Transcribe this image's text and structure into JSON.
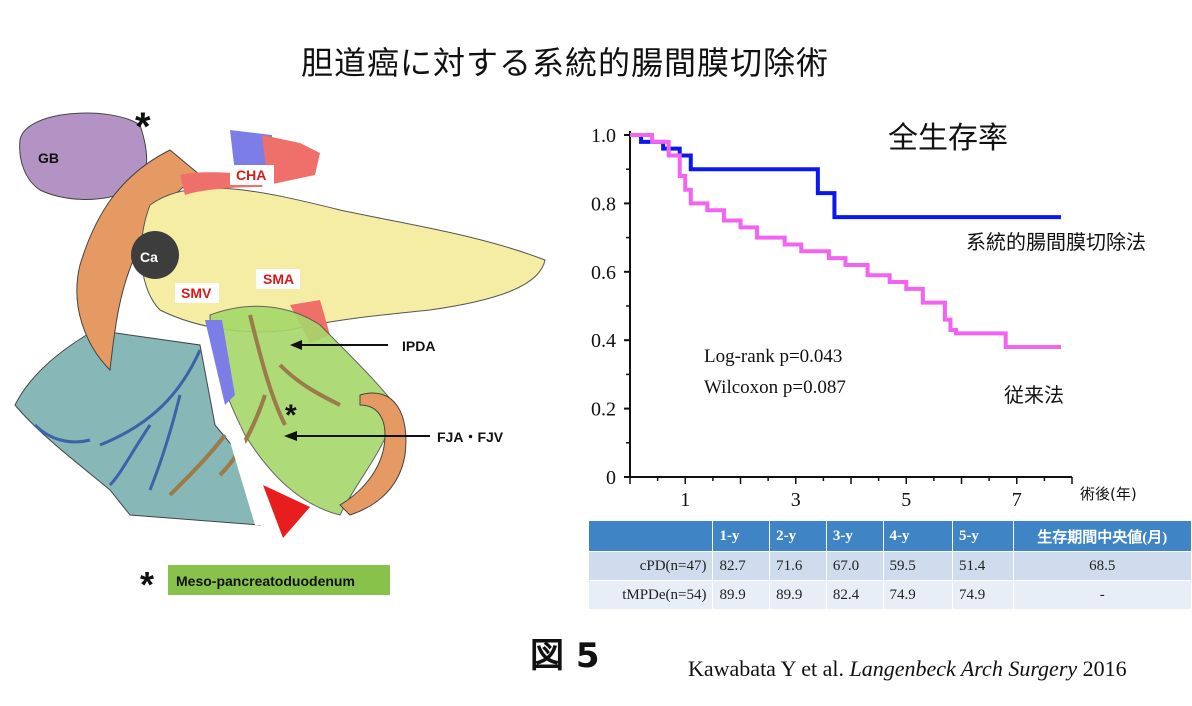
{
  "page_title": "胆道癌に対する系統的腸間膜切除術",
  "anatomy": {
    "labels": {
      "gb": "GB",
      "cha": "CHA",
      "ca": "Ca",
      "smv": "SMV",
      "sma": "SMA",
      "ipda": "IPDA",
      "fja": "FJA・FJV",
      "star": "*"
    },
    "legend_star": "*",
    "legend_text": "Meso-pancreatoduodenum"
  },
  "chart_data": {
    "type": "line",
    "title": "全生存率",
    "xlabel": "術後(年)",
    "ylabel": "",
    "xlim": [
      0,
      8
    ],
    "ylim": [
      0,
      1.0
    ],
    "x_ticks": [
      1,
      3,
      5,
      7
    ],
    "y_ticks": [
      0,
      0.2,
      0.4,
      0.6,
      0.8,
      1.0
    ],
    "y_tick_labels": [
      "0",
      "0.2",
      "0.4",
      "0.6",
      "0.8",
      "1.0"
    ],
    "series": [
      {
        "name": "系統的腸間膜切除法",
        "color": "#0a18f0",
        "points": [
          [
            0,
            1.0
          ],
          [
            0.2,
            1.0
          ],
          [
            0.2,
            0.98
          ],
          [
            0.6,
            0.98
          ],
          [
            0.6,
            0.96
          ],
          [
            0.9,
            0.96
          ],
          [
            0.9,
            0.94
          ],
          [
            1.1,
            0.94
          ],
          [
            1.1,
            0.9
          ],
          [
            3.4,
            0.9
          ],
          [
            3.4,
            0.83
          ],
          [
            3.7,
            0.83
          ],
          [
            3.7,
            0.76
          ],
          [
            7.8,
            0.76
          ]
        ]
      },
      {
        "name": "従来法",
        "color": "#f263f2",
        "points": [
          [
            0,
            1.0
          ],
          [
            0.4,
            1.0
          ],
          [
            0.4,
            0.98
          ],
          [
            0.7,
            0.98
          ],
          [
            0.7,
            0.94
          ],
          [
            0.9,
            0.94
          ],
          [
            0.9,
            0.88
          ],
          [
            1.0,
            0.88
          ],
          [
            1.0,
            0.84
          ],
          [
            1.1,
            0.84
          ],
          [
            1.1,
            0.8
          ],
          [
            1.4,
            0.8
          ],
          [
            1.4,
            0.78
          ],
          [
            1.7,
            0.78
          ],
          [
            1.7,
            0.75
          ],
          [
            2.0,
            0.75
          ],
          [
            2.0,
            0.73
          ],
          [
            2.3,
            0.73
          ],
          [
            2.3,
            0.7
          ],
          [
            2.8,
            0.7
          ],
          [
            2.8,
            0.68
          ],
          [
            3.1,
            0.68
          ],
          [
            3.1,
            0.66
          ],
          [
            3.6,
            0.66
          ],
          [
            3.6,
            0.64
          ],
          [
            3.9,
            0.64
          ],
          [
            3.9,
            0.62
          ],
          [
            4.3,
            0.62
          ],
          [
            4.3,
            0.59
          ],
          [
            4.7,
            0.59
          ],
          [
            4.7,
            0.57
          ],
          [
            5.0,
            0.57
          ],
          [
            5.0,
            0.55
          ],
          [
            5.3,
            0.55
          ],
          [
            5.3,
            0.51
          ],
          [
            5.7,
            0.51
          ],
          [
            5.7,
            0.46
          ],
          [
            5.8,
            0.46
          ],
          [
            5.8,
            0.43
          ],
          [
            5.9,
            0.43
          ],
          [
            5.9,
            0.42
          ],
          [
            6.8,
            0.42
          ],
          [
            6.8,
            0.38
          ],
          [
            7.8,
            0.38
          ]
        ]
      }
    ],
    "annotations": [
      "Log-rank  p=0.043",
      "Wilcoxon p=0.087"
    ]
  },
  "table": {
    "headers": [
      "",
      "1-y",
      "2-y",
      "3-y",
      "4-y",
      "5-y",
      "生存期間中央値(月)"
    ],
    "rows": [
      [
        "cPD(n=47)",
        "82.7",
        "71.6",
        "67.0",
        "59.5",
        "51.4",
        "68.5"
      ],
      [
        "tMPDe(n=54)",
        "89.9",
        "89.9",
        "82.4",
        "74.9",
        "74.9",
        "-"
      ]
    ]
  },
  "figure_label": "図 5",
  "citation": {
    "authors": "Kawabata Y et al.",
    "journal": "Langenbeck Arch Surgery",
    "year": "2016"
  },
  "colors": {
    "gallbladder": "#b393c4",
    "duodenum": "#e49a62",
    "pancreas": "#f6eda4",
    "artery": "#ef6f6a",
    "vein": "#7d7de8",
    "mesentery_green": "#a6d86a",
    "mesentery_teal": "#87b7b6",
    "arrowhead": "#e81d1d",
    "legend_bg": "#88c24a"
  }
}
